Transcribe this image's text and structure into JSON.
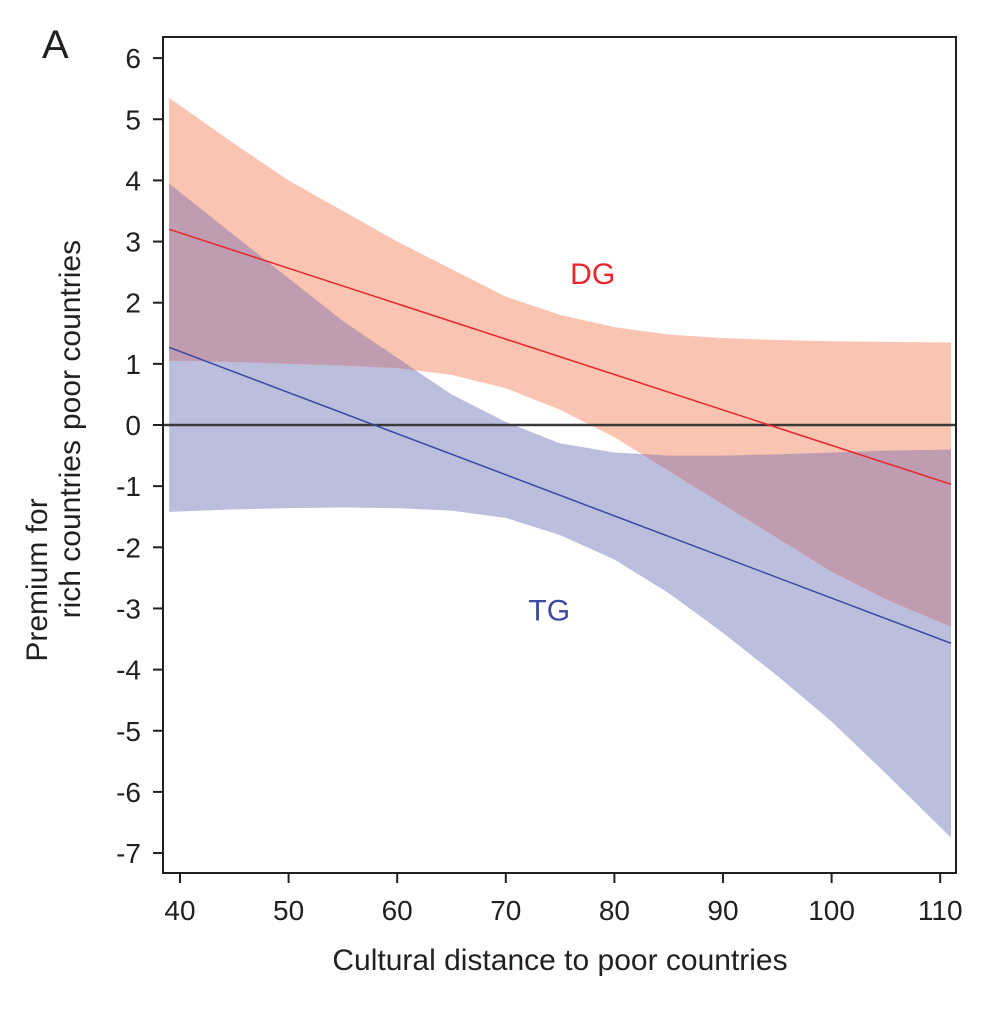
{
  "panel_label": "A",
  "chart_data": {
    "type": "line",
    "xlabel": "Cultural distance to poor countries",
    "ylabel_top": [
      "Premium for",
      "poor countries"
    ],
    "ylabel_bottom": [
      "Premium for",
      "rich countries"
    ],
    "ylabel_lines": [
      "rich countries",
      "Premium for",
      "poor countries"
    ],
    "xlim": [
      39,
      111
    ],
    "ylim": [
      -7.4,
      6.3
    ],
    "xticks": [
      40,
      50,
      60,
      70,
      80,
      90,
      100,
      110
    ],
    "yticks": [
      6,
      5,
      4,
      3,
      2,
      1,
      0,
      -1,
      -2,
      -3,
      -4,
      -5,
      -6,
      -7
    ],
    "reference_line_y": 0,
    "grid": false,
    "series": [
      {
        "name": "DG",
        "color": "#e8262c",
        "band_color": "#f9c5b2",
        "x": [
          39,
          111
        ],
        "y": [
          3.2,
          -0.97
        ],
        "band_x": [
          39,
          45,
          50,
          55,
          60,
          65,
          70,
          75,
          80,
          85,
          90,
          95,
          100,
          105,
          111
        ],
        "band_upper": [
          5.35,
          4.6,
          4.0,
          3.5,
          3.0,
          2.55,
          2.1,
          1.8,
          1.6,
          1.48,
          1.42,
          1.39,
          1.37,
          1.36,
          1.35
        ],
        "band_lower": [
          1.05,
          1.03,
          1.0,
          0.97,
          0.93,
          0.82,
          0.6,
          0.25,
          -0.2,
          -0.75,
          -1.3,
          -1.85,
          -2.4,
          -2.85,
          -3.3
        ]
      },
      {
        "name": "TG",
        "color": "#3a4a9f",
        "band_color": "#bcbede",
        "x": [
          39,
          111
        ],
        "y": [
          1.27,
          -3.57
        ],
        "band_x": [
          39,
          45,
          50,
          55,
          60,
          65,
          70,
          75,
          80,
          85,
          90,
          95,
          100,
          105,
          111
        ],
        "band_upper": [
          3.95,
          3.1,
          2.4,
          1.7,
          1.1,
          0.5,
          0.05,
          -0.3,
          -0.45,
          -0.5,
          -0.5,
          -0.48,
          -0.45,
          -0.42,
          -0.4
        ],
        "band_lower": [
          -1.42,
          -1.38,
          -1.36,
          -1.35,
          -1.36,
          -1.4,
          -1.52,
          -1.8,
          -2.2,
          -2.75,
          -3.4,
          -4.1,
          -4.85,
          -5.7,
          -6.75
        ]
      }
    ],
    "overlap_color": "#c09cb1",
    "annotations": [
      {
        "text": "DG",
        "x": 78,
        "y": 2.5,
        "color": "#e8262c"
      },
      {
        "text": "TG",
        "x": 74,
        "y": -3.0,
        "color": "#3a4a9f"
      }
    ]
  }
}
